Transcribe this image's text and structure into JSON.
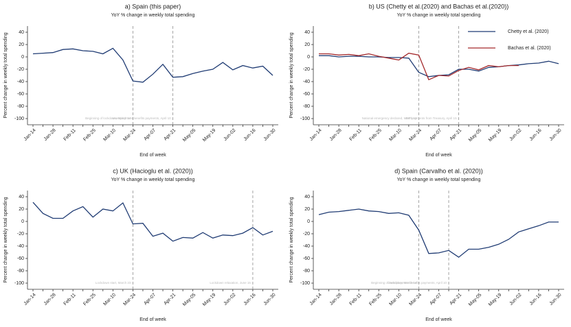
{
  "chart_data": [
    {
      "type": "line",
      "title": "a) Spain (this paper)",
      "subtitle": "YoY % change in weekly total spending",
      "xlabel": "End of week",
      "ylabel": "Percent change in weekly total spending",
      "categories": [
        "Jan-14",
        null,
        "Jan-28",
        null,
        "Feb-11",
        null,
        "Feb-25",
        null,
        "Mar-10",
        null,
        "Mar-24",
        null,
        "Apr-07",
        null,
        "Apr-21",
        null,
        "May-05",
        null,
        "May-19",
        null,
        "Jun-02",
        null,
        "Jun-16",
        null,
        "Jun-30"
      ],
      "values": [
        5,
        6,
        7,
        12,
        13,
        10,
        9,
        5,
        14,
        -5,
        -39,
        -41,
        -28,
        -12,
        -33,
        -32,
        -27,
        -23,
        -20,
        -9,
        -21,
        -14,
        -18,
        -15,
        -30
      ],
      "color": "#1f3b73",
      "ylim": [
        -110,
        50
      ],
      "yticks": [
        40,
        20,
        0,
        -20,
        -40,
        -60,
        -80,
        -100
      ],
      "vlines": [
        {
          "index": 10,
          "label": "Beginning of lockdown, March 14"
        },
        {
          "index": 14,
          "label": "Unemployment benefits payments, April 10"
        }
      ]
    },
    {
      "type": "line",
      "title": "b) US (Chetty et al.(2020) and Bachas et al.(2020))",
      "subtitle": "YoY % change in weekly total spending",
      "xlabel": "End of week",
      "ylabel": "Percent change in weekly total spending",
      "categories": [
        "Jan-14",
        null,
        "Jan-28",
        null,
        "Feb-11",
        null,
        "Feb-25",
        null,
        "Mar-10",
        null,
        "Mar-24",
        null,
        "Apr-07",
        null,
        "Apr-21",
        null,
        "May-05",
        null,
        "May-19",
        null,
        "Jun-02",
        null,
        "Jun-16",
        null,
        "Jun-30"
      ],
      "series": [
        {
          "name": "Chetty et al. (2020)",
          "color": "#1f3b73",
          "values": [
            2,
            2,
            0,
            1,
            1,
            0,
            0,
            -1,
            -1,
            -2,
            -25,
            -32,
            -30,
            -29,
            -20,
            -20,
            -23,
            -17,
            -16,
            -14,
            -13,
            -11,
            -10,
            -7,
            -11
          ]
        },
        {
          "name": "Bachas et al. (2020)",
          "color": "#a3282b",
          "values": [
            5,
            5,
            3,
            4,
            2,
            5,
            1,
            -2,
            -5,
            6,
            3,
            -37,
            -30,
            -31,
            -22,
            -17,
            -21,
            -14,
            -16,
            -14,
            -14,
            null,
            null,
            null,
            null
          ]
        }
      ],
      "legend": "top-right",
      "ylim": [
        -110,
        50
      ],
      "yticks": [
        40,
        20,
        0,
        -20,
        -40,
        -60,
        -80,
        -100
      ],
      "vlines": [
        {
          "index": 10,
          "label": "National emergency declared, March 13"
        },
        {
          "index": 14,
          "label": "EIP payments from Treasury, April 15"
        }
      ]
    },
    {
      "type": "line",
      "title": "c) UK (Hacioglu et al. (2020))",
      "subtitle": "YoY % change in weekly total spending",
      "xlabel": "End of week",
      "ylabel": "Percent change in weekly total spending",
      "categories": [
        "Jan-14",
        null,
        "Jan-28",
        null,
        "Feb-11",
        null,
        "Feb-25",
        null,
        "Mar-10",
        null,
        "Mar-24",
        null,
        "Apr-07",
        null,
        "Apr-21",
        null,
        "May-05",
        null,
        "May-19",
        null,
        "Jun-02",
        null,
        "Jun-16",
        null,
        "Jun-30"
      ],
      "values": [
        31,
        13,
        5,
        5,
        17,
        24,
        7,
        20,
        17,
        30,
        -4,
        -3,
        -24,
        -19,
        -32,
        -26,
        -27,
        -18,
        -27,
        -22,
        -23,
        -19,
        -10,
        -22,
        -16
      ],
      "color": "#1f3b73",
      "ylim": [
        -110,
        50
      ],
      "yticks": [
        40,
        20,
        0,
        -20,
        -40,
        -60,
        -80,
        -100
      ],
      "vlines": [
        {
          "index": 10,
          "label": "Lockdown start, March 23"
        },
        {
          "index": 22,
          "label": "Lockdown relaxation, June 15"
        }
      ]
    },
    {
      "type": "line",
      "title": "d) Spain (Carvalho et al. (2020))",
      "subtitle": "YoY % change in weekly total spending",
      "xlabel": "End of week",
      "ylabel": "Percent change in weekly total spending",
      "categories": [
        "Jan-14",
        null,
        "Jan-28",
        null,
        "Feb-11",
        null,
        "Feb-25",
        null,
        "Mar-10",
        null,
        "Mar-24",
        null,
        "Apr-07",
        null,
        "Apr-21",
        null,
        "May-05",
        null,
        "May-19",
        null,
        "Jun-02",
        null,
        "Jun-16",
        null,
        "Jun-30"
      ],
      "values": [
        11,
        15,
        16,
        18,
        20,
        17,
        16,
        13,
        14,
        10,
        -14,
        -52,
        -51,
        -47,
        -58,
        -45,
        -45,
        -42,
        -37,
        -29,
        -17,
        -12,
        -7,
        -1,
        -1
      ],
      "color": "#1f3b73",
      "ylim": [
        -110,
        50
      ],
      "yticks": [
        40,
        20,
        0,
        -20,
        -40,
        -60,
        -80,
        -100
      ],
      "vlines": [
        {
          "index": 10,
          "label": "Beginning of lockdown, March 14"
        },
        {
          "index": 13,
          "label": "Unemployment benefits payments, April 10"
        }
      ]
    }
  ]
}
